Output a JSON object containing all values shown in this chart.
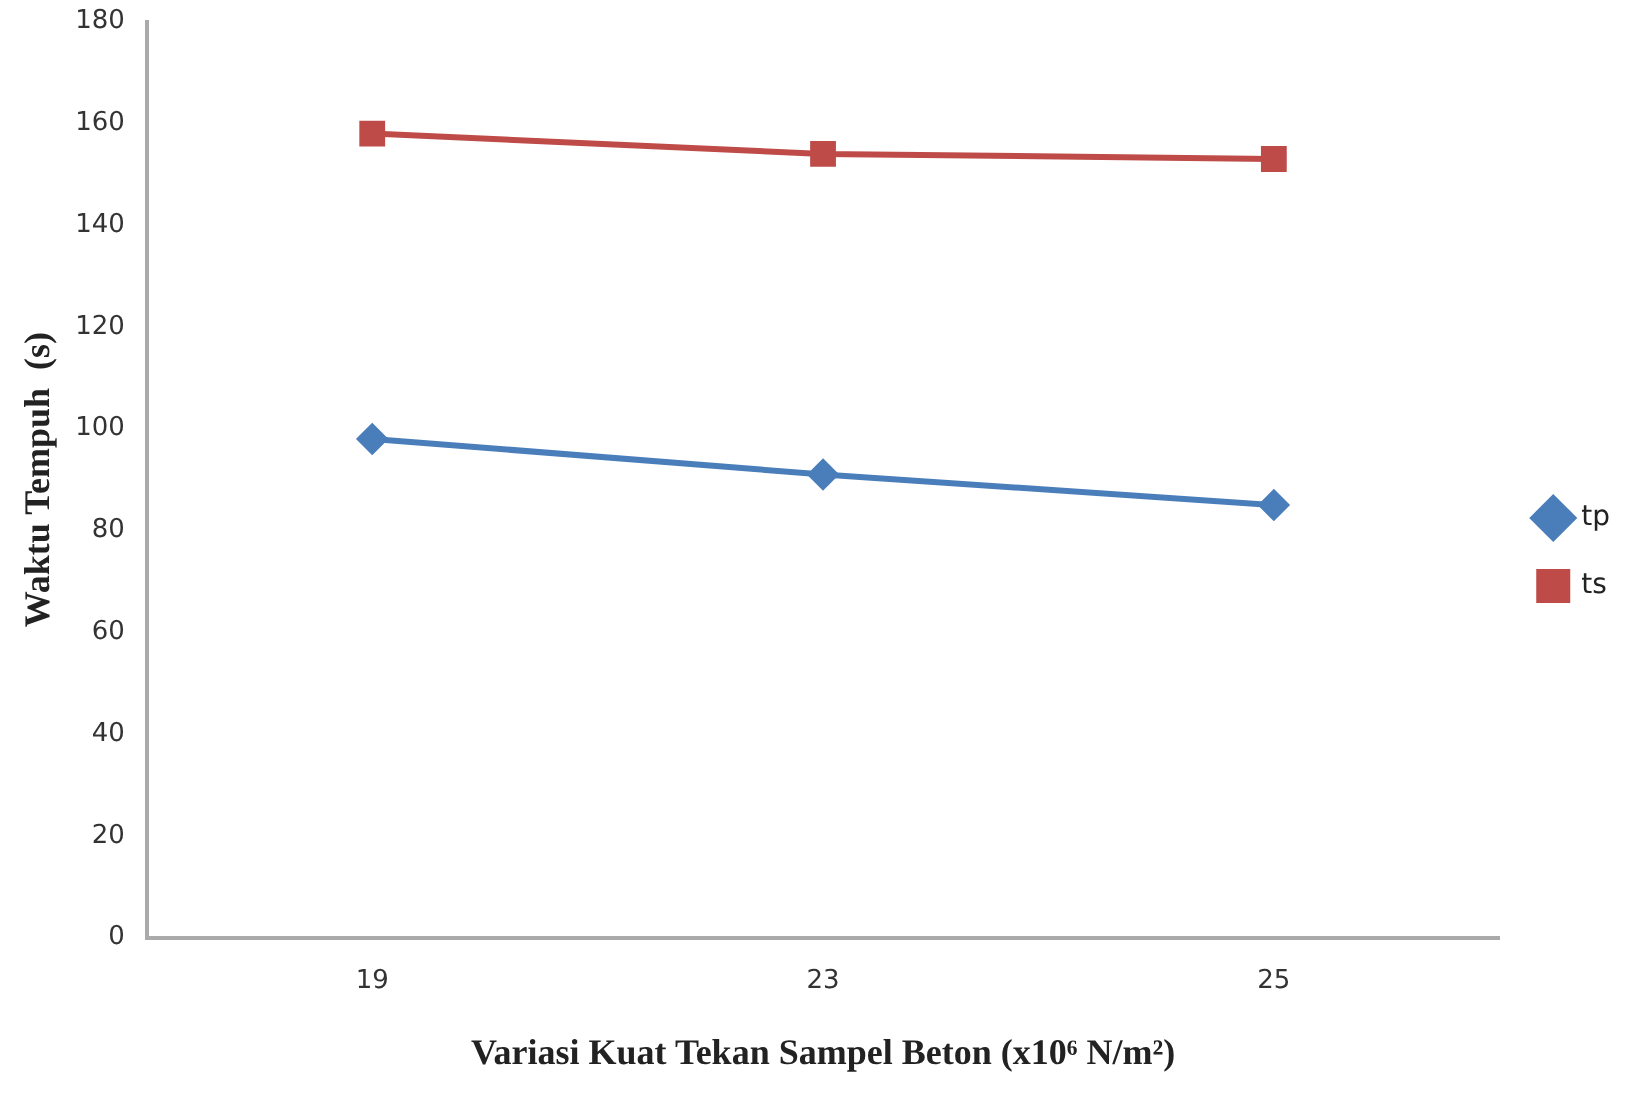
{
  "chart_data": {
    "type": "line",
    "xlabel": "Variasi Kuat Tekan Sampel Beton (x10⁶ N/m²)",
    "ylabel": "Waktu Tempuh  (s)",
    "categories": [
      "19",
      "23",
      "25"
    ],
    "series": [
      {
        "name": "tp",
        "color": "#4a7ebb",
        "values": [
          98,
          91,
          85
        ],
        "marker": "diamond"
      },
      {
        "name": "ts",
        "color": "#be4b48",
        "values": [
          158,
          154,
          153
        ],
        "marker": "square"
      }
    ],
    "ylim": [
      0,
      180
    ],
    "yticks": [
      0,
      20,
      40,
      60,
      80,
      100,
      120,
      140,
      160,
      180
    ],
    "grid": false,
    "legend": "right"
  }
}
